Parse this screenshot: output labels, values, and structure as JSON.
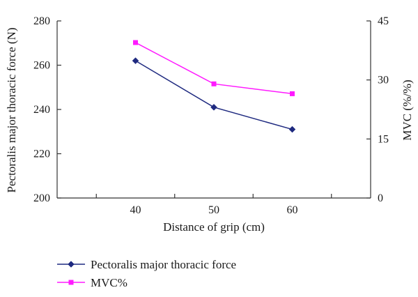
{
  "chart_data": {
    "type": "line",
    "x": [
      40,
      50,
      60
    ],
    "xlabel": "Distance of grip (cm)",
    "xticks": [
      "40",
      "50",
      "60"
    ],
    "xlim": [
      30,
      70
    ],
    "ylabel_left": "Pectoralis major thoracic force (N)",
    "ylim_left": [
      200,
      280
    ],
    "yticks_left": [
      "200",
      "220",
      "240",
      "260",
      "280"
    ],
    "ylabel_right": "MVC (%/%)",
    "ylim_right": [
      0,
      45
    ],
    "yticks_right": [
      "0",
      "15",
      "30",
      "45"
    ],
    "series": [
      {
        "name": "Pectoralis major thoracic force",
        "axis": "left",
        "values": [
          262,
          241,
          231
        ],
        "color": "#1f2a80",
        "marker": "diamond"
      },
      {
        "name": "MVC%",
        "axis": "right",
        "values": [
          39.5,
          29,
          26.5
        ],
        "color": "#ff1aff",
        "marker": "square"
      }
    ],
    "grid": false,
    "legend_position": "bottom-left"
  }
}
